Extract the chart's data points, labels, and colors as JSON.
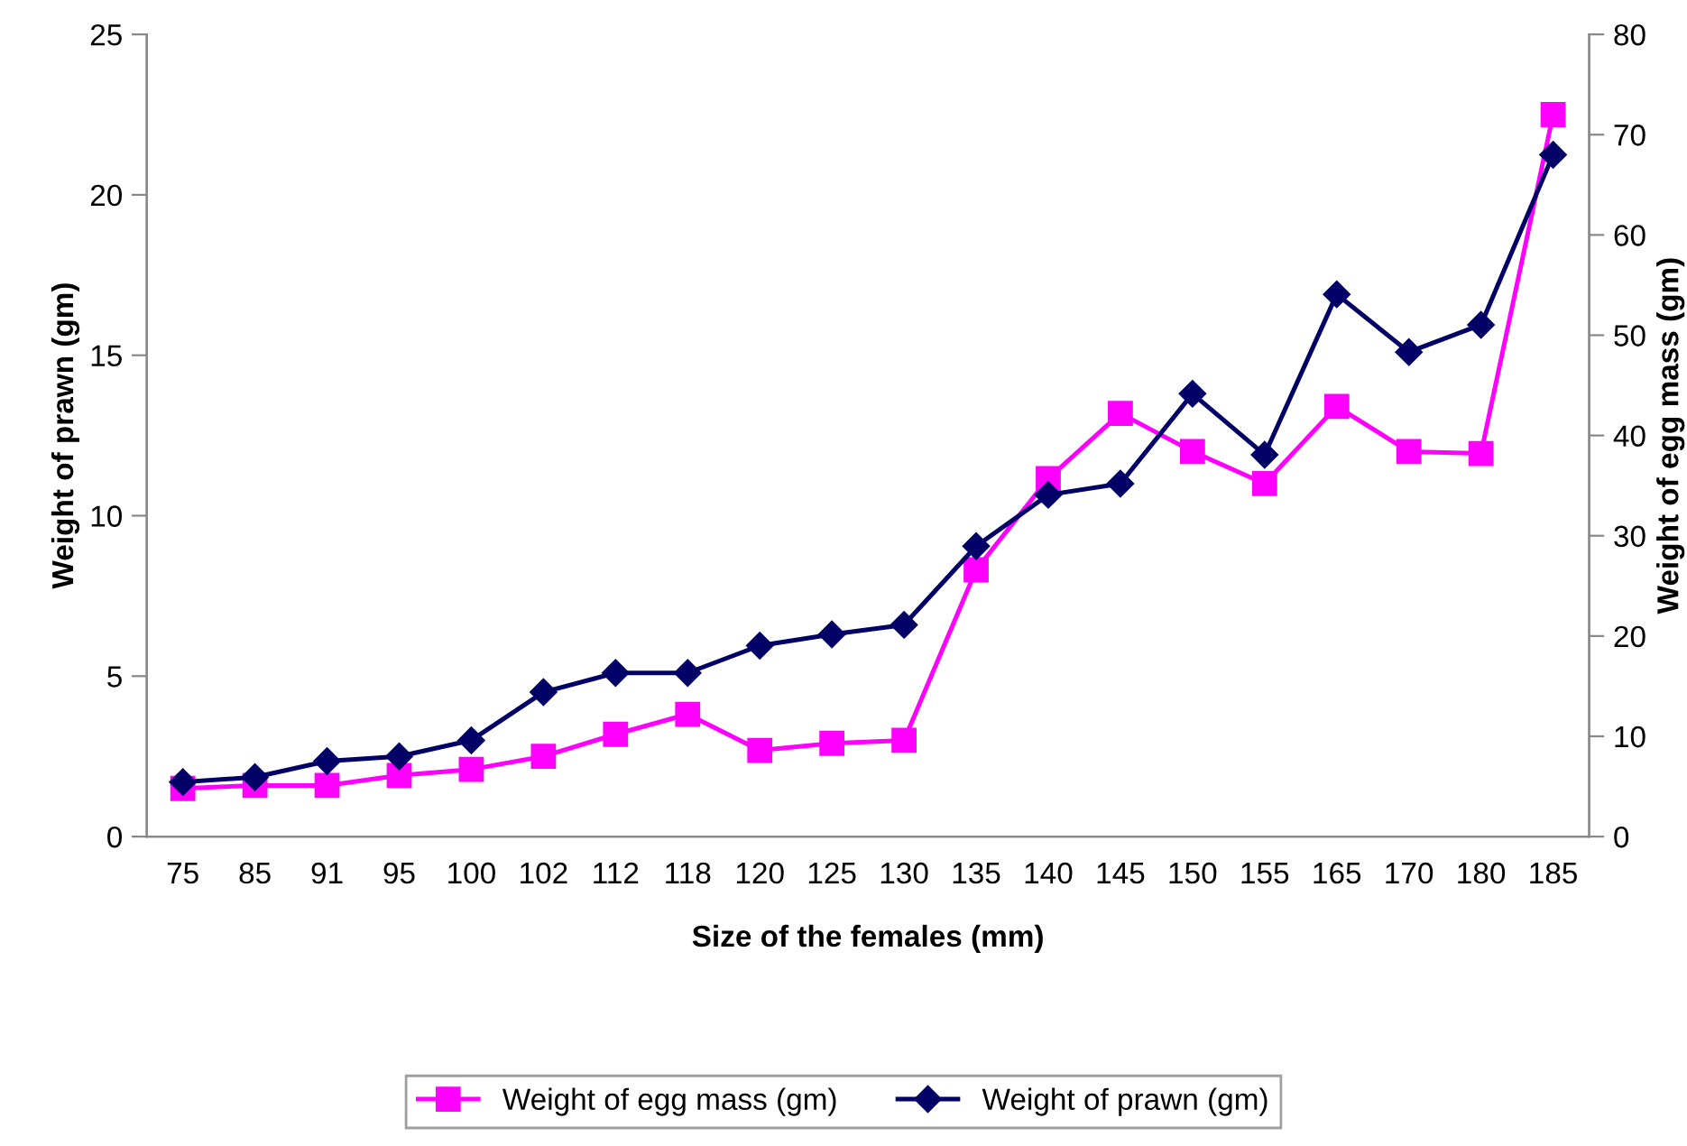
{
  "chart_data": {
    "type": "line",
    "xlabel": "Size of the females (mm)",
    "ylabel": "Weight of prawn (gm)",
    "y2label": "Weight of egg mass (gm)",
    "categories": [
      "75",
      "85",
      "91",
      "95",
      "100",
      "102",
      "112",
      "118",
      "120",
      "125",
      "130",
      "135",
      "140",
      "145",
      "150",
      "155",
      "165",
      "170",
      "180",
      "185"
    ],
    "series": [
      {
        "name": "Weight of egg mass (gm)",
        "color": "#ff00ff",
        "marker": "square",
        "axis": "y2",
        "values": [
          4.8,
          5.1,
          5.1,
          6.1,
          6.7,
          8.0,
          10.2,
          12.2,
          8.6,
          9.3,
          9.6,
          26.6,
          35.7,
          42.2,
          38.4,
          35.2,
          42.9,
          38.4,
          38.2,
          72.0
        ]
      },
      {
        "name": "Weight of prawn (gm)",
        "color": "#000066",
        "marker": "diamond",
        "values": [
          1.7,
          1.85,
          2.35,
          2.5,
          3.0,
          4.5,
          5.1,
          5.1,
          5.95,
          6.3,
          6.6,
          9.05,
          10.65,
          11.0,
          13.8,
          11.9,
          16.9,
          15.1,
          15.95,
          21.25
        ]
      }
    ],
    "ylim": [
      0,
      25
    ],
    "yticks": [
      0,
      5,
      10,
      15,
      20,
      25
    ],
    "y2lim": [
      0,
      80
    ],
    "y2ticks": [
      0,
      10,
      20,
      30,
      40,
      50,
      60,
      70,
      80
    ],
    "grid": false,
    "legend": "bottom",
    "line_style": "solid"
  }
}
